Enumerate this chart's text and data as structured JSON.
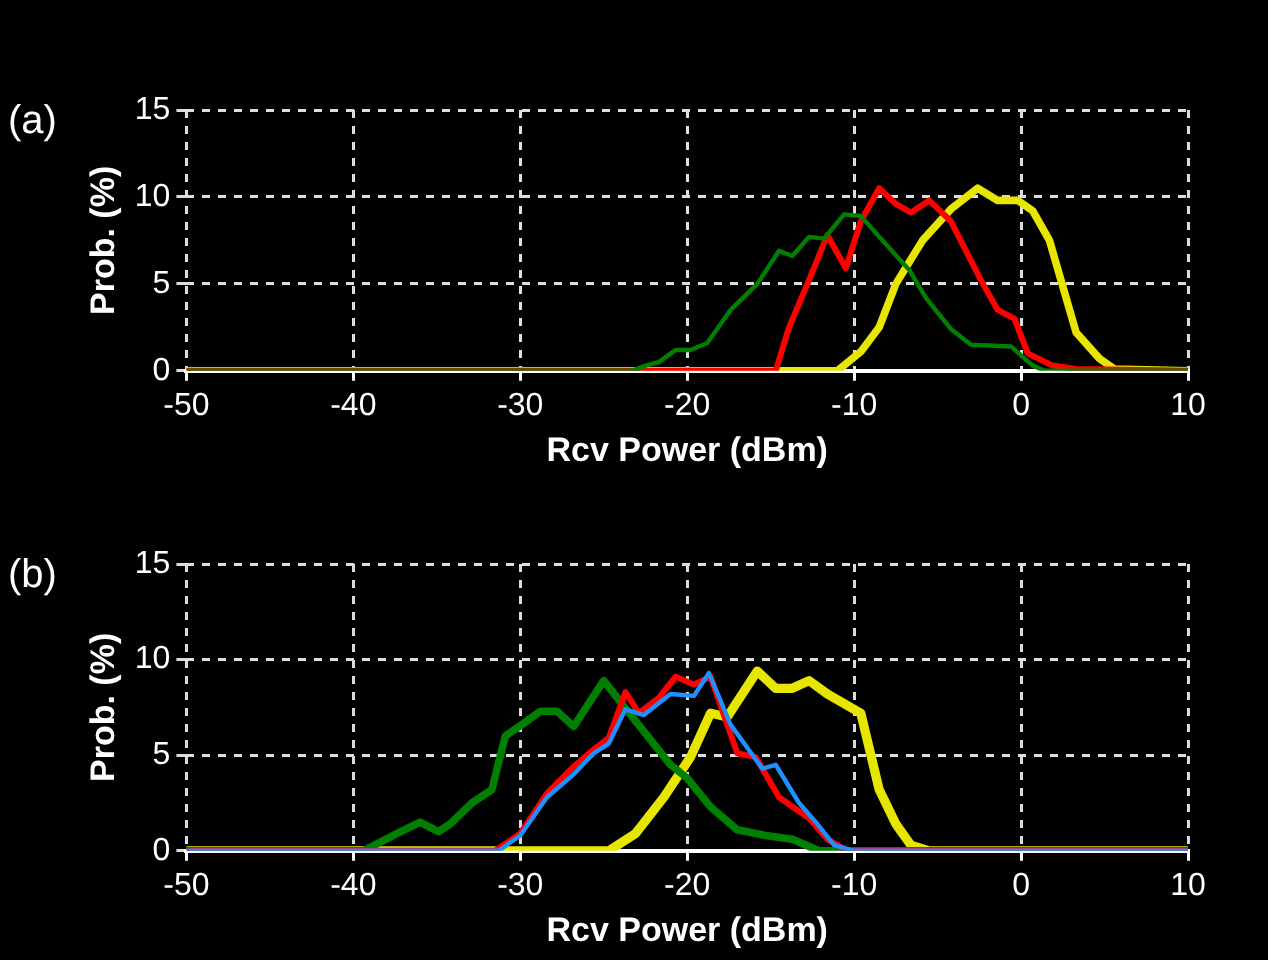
{
  "chart_data": [
    {
      "type": "line",
      "title": "(a)",
      "xlabel": "Rcv Power (dBm)",
      "ylabel": "Prob. (%)",
      "xlim": [
        -50,
        10
      ],
      "xticks": [
        -50,
        -40,
        -30,
        -20,
        -10,
        0,
        10
      ],
      "ylim": [
        0,
        15
      ],
      "yticks": [
        0,
        5,
        10,
        15
      ],
      "grid": true,
      "legend": false,
      "marker": "none",
      "line_style": "solid",
      "series": [
        {
          "color": "#e6e600",
          "x": [
            -50,
            -11,
            -9.6,
            -8.5,
            -7.5,
            -5.9,
            -4.2,
            -2.6,
            -1.4,
            -0.2,
            0.7,
            1.7,
            3.3,
            4.7,
            5.6,
            10
          ],
          "values": [
            0,
            0,
            1.1,
            2.5,
            5,
            7.5,
            9.3,
            10.5,
            9.8,
            9.8,
            9.2,
            7.5,
            2.2,
            0.7,
            0.1,
            0
          ]
        },
        {
          "color": "#ff0000",
          "x": [
            -50,
            -14.7,
            -13.9,
            -12.8,
            -11.6,
            -10.5,
            -9.6,
            -8.5,
            -7.5,
            -6.6,
            -5.5,
            -4.2,
            -2.4,
            -1.4,
            -0.4,
            0.4,
            1.9,
            3.3,
            10
          ],
          "values": [
            0,
            0,
            2.5,
            5,
            7.8,
            5.9,
            8.6,
            10.5,
            9.6,
            9.1,
            9.8,
            8.6,
            5.2,
            3.5,
            3,
            1,
            0.3,
            0.1,
            0
          ]
        },
        {
          "color": "#008000",
          "x": [
            -50,
            -23.3,
            -22.5,
            -21.7,
            -20.7,
            -19.8,
            -18.8,
            -17.4,
            -15.8,
            -14.5,
            -13.7,
            -12.7,
            -11.8,
            -10.6,
            -9.6,
            -8.4,
            -6.7,
            -5.7,
            -4.2,
            -3,
            -0.6,
            0.7,
            1.4,
            10
          ],
          "values": [
            0,
            0,
            0.3,
            0.5,
            1.2,
            1.2,
            1.6,
            3.5,
            5,
            6.9,
            6.6,
            7.7,
            7.6,
            9,
            8.9,
            7.6,
            5.8,
            4.2,
            2.4,
            1.5,
            1.4,
            0.3,
            0,
            0
          ]
        }
      ]
    },
    {
      "type": "line",
      "title": "(b)",
      "xlabel": "Rcv Power (dBm)",
      "ylabel": "Prob. (%)",
      "xlim": [
        -50,
        10
      ],
      "xticks": [
        -50,
        -40,
        -30,
        -20,
        -10,
        0,
        10
      ],
      "ylim": [
        0,
        15
      ],
      "yticks": [
        0,
        5,
        10,
        15
      ],
      "grid": true,
      "legend": false,
      "marker": "none",
      "line_style": "solid",
      "series": [
        {
          "color": "#e6e600",
          "x": [
            -50,
            -24.7,
            -23.1,
            -21.4,
            -19.8,
            -18.6,
            -17.6,
            -15.8,
            -14.7,
            -13.7,
            -12.7,
            -11.6,
            -9.6,
            -8.5,
            -7.5,
            -6.6,
            -5.5,
            10
          ],
          "values": [
            0,
            0,
            0.9,
            2.8,
            4.9,
            7.2,
            7,
            9.4,
            8.5,
            8.5,
            8.9,
            8.2,
            7.2,
            3.2,
            1.4,
            0.3,
            0,
            0
          ]
        },
        {
          "color": "#008000",
          "x": [
            -50,
            -41.5,
            -39.4,
            -37.4,
            -36,
            -34.9,
            -34.2,
            -32.9,
            -31.7,
            -30.9,
            -29.9,
            -28.8,
            -27.8,
            -26.8,
            -25,
            -23.1,
            -21,
            -20,
            -18.6,
            -17,
            -15.3,
            -13.7,
            -12.1,
            10
          ],
          "values": [
            0,
            0,
            0,
            0.9,
            1.5,
            1,
            1.4,
            2.5,
            3.2,
            6,
            6.6,
            7.3,
            7.3,
            6.5,
            8.9,
            6.8,
            4.5,
            3.8,
            2.3,
            1.1,
            0.8,
            0.6,
            0,
            0
          ]
        },
        {
          "color": "#ff0000",
          "x": [
            -50,
            -31.5,
            -30,
            -28.4,
            -26.8,
            -25.6,
            -24.7,
            -23.7,
            -22.9,
            -21.7,
            -20.7,
            -19.6,
            -18.6,
            -17,
            -15.9,
            -14.5,
            -12.7,
            -11.6,
            -10.4,
            10
          ],
          "values": [
            0,
            0,
            0.9,
            3,
            4.4,
            5.3,
            5.9,
            8.3,
            7.2,
            8,
            9.1,
            8.7,
            9.1,
            5.1,
            4.9,
            2.8,
            1.7,
            0.6,
            0,
            0
          ]
        },
        {
          "color": "#1e90ff",
          "x": [
            -50,
            -31.3,
            -30,
            -28.4,
            -26.8,
            -25.6,
            -24.7,
            -23.7,
            -22.6,
            -21,
            -19.6,
            -18.7,
            -17.4,
            -15.5,
            -14.7,
            -13.3,
            -12.2,
            -11.2,
            -10,
            10
          ],
          "values": [
            0,
            0,
            0.8,
            2.8,
            4,
            5.1,
            5.6,
            7.4,
            7.1,
            8.2,
            8.1,
            9.3,
            6.6,
            4.3,
            4.5,
            2.5,
            1.4,
            0.3,
            0,
            0
          ]
        }
      ]
    }
  ]
}
